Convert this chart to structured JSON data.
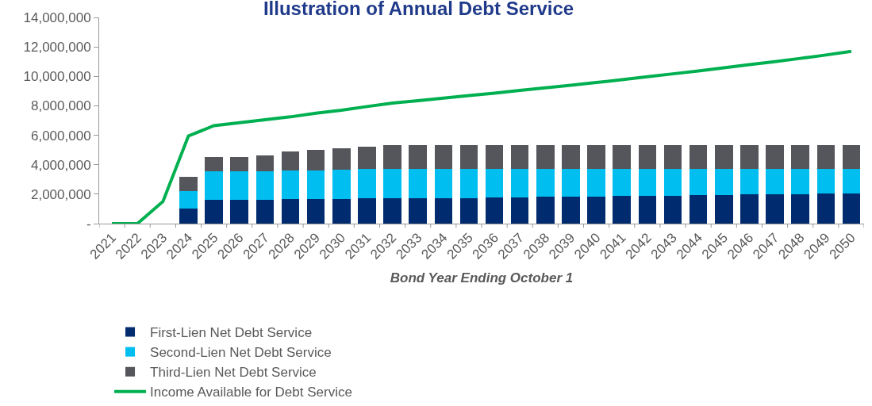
{
  "chart_data": {
    "type": "bar",
    "title": "Illustration of Annual Debt Service",
    "xlabel": "Bond Year Ending October 1",
    "categories": [
      "2021",
      "2022",
      "2023",
      "2024",
      "2025",
      "2026",
      "2027",
      "2028",
      "2029",
      "2030",
      "2031",
      "2032",
      "2033",
      "2034",
      "2035",
      "2036",
      "2037",
      "2038",
      "2039",
      "2040",
      "2041",
      "2042",
      "2043",
      "2044",
      "2045",
      "2046",
      "2047",
      "2048",
      "2049",
      "2050"
    ],
    "stacked": true,
    "series": [
      {
        "name": "First-Lien Net Debt Service",
        "color": "#002b6e",
        "values": [
          null,
          null,
          null,
          1000000,
          1600000,
          1600000,
          1600000,
          1650000,
          1650000,
          1670000,
          1700000,
          1720000,
          1730000,
          1750000,
          1750000,
          1780000,
          1790000,
          1810000,
          1830000,
          1850000,
          1870000,
          1890000,
          1910000,
          1930000,
          1950000,
          1970000,
          1990000,
          2010000,
          2030000,
          2050000
        ]
      },
      {
        "name": "Second-Lien Net Debt Service",
        "color": "#00bef0",
        "values": [
          null,
          null,
          null,
          1200000,
          1950000,
          1950000,
          1970000,
          1950000,
          1980000,
          2000000,
          2000000,
          2000000,
          1990000,
          1970000,
          1970000,
          1940000,
          1930000,
          1910000,
          1890000,
          1870000,
          1850000,
          1830000,
          1810000,
          1790000,
          1770000,
          1750000,
          1730000,
          1710000,
          1690000,
          1670000
        ]
      },
      {
        "name": "Third-Lien Net Debt Service",
        "color": "#54565b",
        "values": [
          null,
          null,
          null,
          1000000,
          1000000,
          1000000,
          1050000,
          1320000,
          1370000,
          1430000,
          1500000,
          1630000,
          1630000,
          1630000,
          1630000,
          1630000,
          1630000,
          1630000,
          1630000,
          1630000,
          1630000,
          1630000,
          1630000,
          1630000,
          1630000,
          1630000,
          1630000,
          1630000,
          1630000,
          1630000
        ]
      },
      {
        "name": "Income Available for Debt Service",
        "type": "line",
        "color": "#00b050",
        "values": [
          0,
          0,
          1500000,
          5950000,
          6650000,
          6850000,
          7050000,
          7250000,
          7500000,
          7700000,
          7950000,
          8180000,
          8350000,
          8520000,
          8690000,
          8860000,
          9040000,
          9220000,
          9400000,
          9580000,
          9770000,
          9970000,
          10170000,
          10370000,
          10580000,
          10790000,
          11000000,
          11220000,
          11450000,
          11700000
        ]
      }
    ],
    "ylim": [
      0,
      14000000
    ],
    "yticks": [
      {
        "value": 0,
        "label": "-"
      },
      {
        "value": 2000000,
        "label": "2,000,000"
      },
      {
        "value": 4000000,
        "label": "4,000,000"
      },
      {
        "value": 6000000,
        "label": "6,000,000"
      },
      {
        "value": 8000000,
        "label": "8,000,000"
      },
      {
        "value": 10000000,
        "label": "10,000,000"
      },
      {
        "value": 12000000,
        "label": "12,000,000"
      },
      {
        "value": 14000000,
        "label": "14,000,000"
      }
    ],
    "grid": false,
    "legend": "bottom",
    "marker": "none",
    "line_style": "solid"
  }
}
